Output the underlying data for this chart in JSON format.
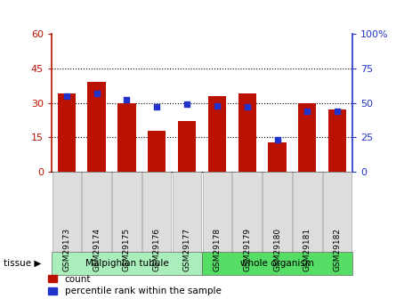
{
  "categories": [
    "GSM29173",
    "GSM29174",
    "GSM29175",
    "GSM29176",
    "GSM29177",
    "GSM29178",
    "GSM29179",
    "GSM29180",
    "GSM29181",
    "GSM29182"
  ],
  "count_values": [
    34,
    39,
    30,
    18,
    22,
    33,
    34,
    13,
    30,
    27
  ],
  "percentile_values": [
    55,
    57,
    52,
    47,
    49,
    48,
    47,
    23,
    44,
    44
  ],
  "left_ylim": [
    0,
    60
  ],
  "right_ylim": [
    0,
    100
  ],
  "left_yticks": [
    0,
    15,
    30,
    45,
    60
  ],
  "right_yticks": [
    0,
    25,
    50,
    75,
    100
  ],
  "right_yticklabels": [
    "0",
    "25",
    "50",
    "75",
    "100%"
  ],
  "bar_color": "#BB1100",
  "dot_color": "#2233CC",
  "tissue_groups": [
    {
      "label": "Malpighian tubule",
      "start": 0,
      "end": 5,
      "color": "#AAEEBB"
    },
    {
      "label": "whole organism",
      "start": 5,
      "end": 10,
      "color": "#55DD66"
    }
  ],
  "legend_count_label": "count",
  "legend_pct_label": "percentile rank within the sample",
  "tissue_label": "tissue ▶",
  "dotted_grid_lines": [
    15,
    30,
    45
  ],
  "bar_width": 0.6
}
